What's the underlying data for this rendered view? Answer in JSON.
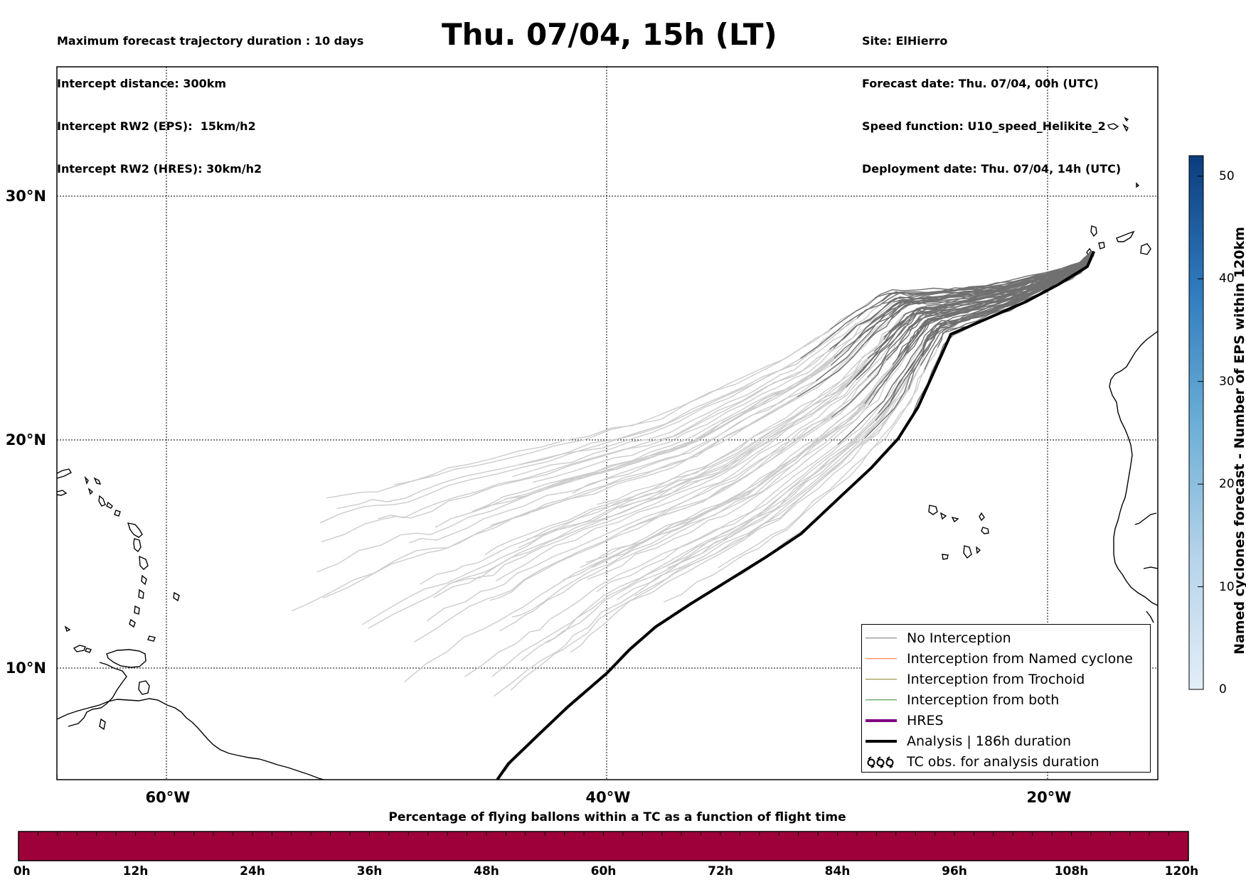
{
  "header": {
    "left_lines": [
      "Maximum forecast trajectory duration : 10 days",
      "Intercept distance: 300km",
      "Intercept RW2 (EPS):  15km/h2",
      "Intercept RW2 (HRES): 30km/h2"
    ],
    "title": "Thu. 07/04, 15h (LT)",
    "right_lines": [
      "Site: ElHierro",
      "Forecast date: Thu. 07/04, 00h (UTC)",
      "Speed function: U10_speed_Helikite_2",
      "Deployment date: Thu. 07/04, 14h (UTC)"
    ]
  },
  "map": {
    "lat_labels": [
      "30°N",
      "20°N",
      "10°N"
    ],
    "lon_labels": [
      "60°W",
      "40°W",
      "20°W"
    ],
    "lon_range": [
      -65,
      -15
    ],
    "lat_range": [
      5.3,
      34.6
    ],
    "site_label": "ElHierro",
    "analysis_track": [
      [
        -17.9,
        27.6
      ],
      [
        -18.2,
        27.0
      ],
      [
        -19.5,
        26.3
      ],
      [
        -21.0,
        25.6
      ],
      [
        -22.3,
        25.1
      ],
      [
        -23.6,
        24.6
      ],
      [
        -24.4,
        24.3
      ],
      [
        -24.8,
        23.5
      ],
      [
        -25.3,
        22.5
      ],
      [
        -25.9,
        21.3
      ],
      [
        -26.8,
        20.0
      ],
      [
        -28.0,
        18.8
      ],
      [
        -29.5,
        17.5
      ],
      [
        -31.2,
        16.0
      ],
      [
        -32.8,
        15.0
      ],
      [
        -34.5,
        14.0
      ],
      [
        -36.2,
        13.0
      ],
      [
        -37.8,
        12.0
      ],
      [
        -39.0,
        11.0
      ],
      [
        -40.0,
        10.0
      ],
      [
        -40.6,
        9.5
      ],
      [
        -41.8,
        8.5
      ],
      [
        -43.0,
        7.4
      ],
      [
        -44.5,
        6.0
      ],
      [
        -45.0,
        5.3
      ]
    ],
    "colors": {
      "no_interception": "#707070",
      "no_interception_late": "#cccccc",
      "named_cyclone": "#ff6a2a",
      "trochoid": "#7f7f20",
      "both": "#2e8b2e",
      "hres": "#800080",
      "analysis": "#000000"
    }
  },
  "legend": {
    "items": [
      {
        "label": "No Interception",
        "style": "no_interception"
      },
      {
        "label": "Interception from Named cyclone",
        "style": "named_cyclone"
      },
      {
        "label": "Interception from Trochoid",
        "style": "trochoid"
      },
      {
        "label": "Interception from both",
        "style": "both"
      },
      {
        "label": "HRES",
        "style": "hres"
      },
      {
        "label": "Analysis | 186h duration",
        "style": "analysis"
      },
      {
        "label": "TC obs. for analysis duration",
        "style": "tc_obs"
      }
    ]
  },
  "colorbar": {
    "label": "Named cyclones forecast - Number of EPS within 120km",
    "ticks": [
      "0",
      "10",
      "20",
      "30",
      "40",
      "50"
    ],
    "tick_values": [
      0,
      10,
      20,
      30,
      40,
      50
    ],
    "max": 52,
    "color_low": "#e3eef8",
    "color_high": "#0b3c7d"
  },
  "bottom_bar": {
    "title": "Percentage of flying ballons within a TC as a function of flight time",
    "ticks": [
      "0h",
      "12h",
      "24h",
      "36h",
      "48h",
      "60h",
      "72h",
      "84h",
      "96h",
      "108h",
      "120h"
    ],
    "fill_color": "#9e003a",
    "segments": 60
  }
}
